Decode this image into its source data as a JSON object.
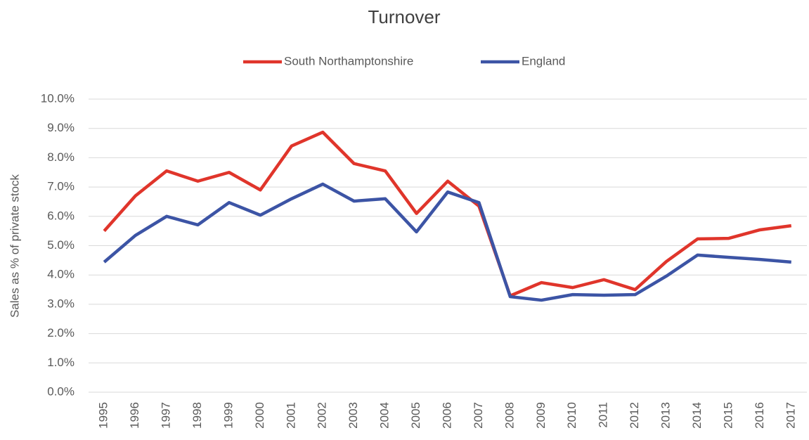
{
  "chart_data": {
    "type": "line",
    "title": "Turnover",
    "y_label": "Sales as % of private stock",
    "categories": [
      "1995",
      "1996",
      "1997",
      "1998",
      "1999",
      "2000",
      "2001",
      "2002",
      "2003",
      "2004",
      "2005",
      "2006",
      "2007",
      "2008",
      "2009",
      "2010",
      "2011",
      "2012",
      "2013",
      "2014",
      "2015",
      "2016",
      "2017"
    ],
    "series": [
      {
        "name": "South Northamptonshire",
        "color": "#e0352b",
        "values": [
          5.5,
          6.7,
          7.55,
          7.2,
          7.5,
          6.9,
          8.4,
          8.87,
          7.8,
          7.55,
          6.1,
          7.2,
          6.35,
          3.29,
          3.74,
          3.57,
          3.84,
          3.5,
          4.46,
          5.23,
          5.25,
          5.54,
          5.68
        ]
      },
      {
        "name": "England",
        "color": "#3c54a5",
        "values": [
          4.44,
          5.35,
          6.0,
          5.71,
          6.47,
          6.04,
          6.6,
          7.1,
          6.52,
          6.6,
          5.47,
          6.83,
          6.47,
          3.26,
          3.14,
          3.33,
          3.31,
          3.33,
          3.96,
          4.68,
          4.6,
          4.53,
          4.44
        ]
      }
    ],
    "ylim": [
      0,
      10
    ],
    "yticks": [
      {
        "value": 0,
        "label": "0.0%"
      },
      {
        "value": 1,
        "label": "1.0%"
      },
      {
        "value": 2,
        "label": "2.0%"
      },
      {
        "value": 3,
        "label": "3.0%"
      },
      {
        "value": 4,
        "label": "4.0%"
      },
      {
        "value": 5,
        "label": "5.0%"
      },
      {
        "value": 6,
        "label": "6.0%"
      },
      {
        "value": 7,
        "label": "7.0%"
      },
      {
        "value": 8,
        "label": "8.0%"
      },
      {
        "value": 9,
        "label": "9.0%"
      },
      {
        "value": 10,
        "label": "10.0%"
      }
    ],
    "grid": true,
    "legend": "top"
  }
}
